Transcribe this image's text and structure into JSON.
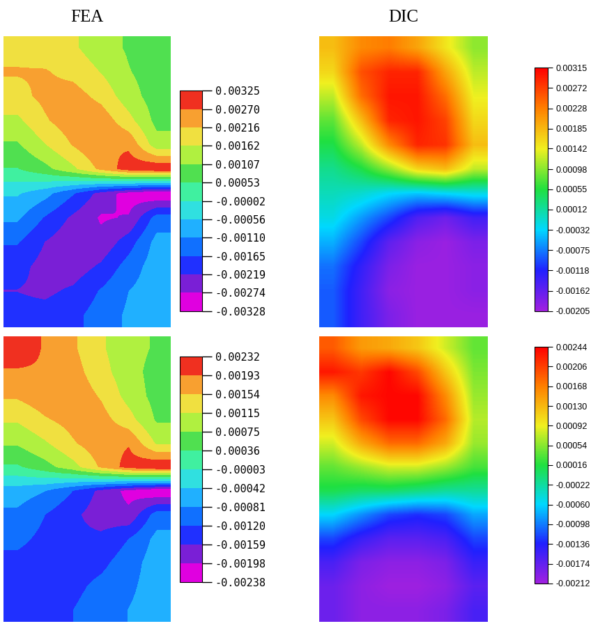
{
  "chart_data": [
    {
      "type": "heatmap",
      "title": "FEA",
      "cells": [
        [
          0.002,
          0.0019,
          0.0017,
          0.0013,
          0.001,
          0.0008
        ],
        [
          0.0022,
          0.0022,
          0.002,
          0.0016,
          0.0011,
          0.0008
        ],
        [
          0.002,
          0.0023,
          0.0024,
          0.002,
          0.0013,
          0.0008
        ],
        [
          0.0015,
          0.0021,
          0.0025,
          0.0025,
          0.0018,
          0.0009
        ],
        [
          0.001,
          0.0016,
          0.0022,
          0.0027,
          0.0026,
          0.0013
        ],
        [
          0.0005,
          0.0009,
          0.0015,
          0.0023,
          0.003,
          0.0032
        ],
        [
          -0.0005,
          -0.0009,
          -0.0016,
          -0.0024,
          -0.003,
          -0.0033
        ],
        [
          -0.001,
          -0.0017,
          -0.0023,
          -0.0028,
          -0.0027,
          -0.0014
        ],
        [
          -0.0016,
          -0.0022,
          -0.0026,
          -0.0026,
          -0.0019,
          -0.0009
        ],
        [
          -0.002,
          -0.0024,
          -0.0025,
          -0.0021,
          -0.0014,
          -0.0008
        ],
        [
          -0.0022,
          -0.0023,
          -0.0021,
          -0.0016,
          -0.0011,
          -0.0008
        ],
        [
          -0.002,
          -0.002,
          -0.0018,
          -0.0014,
          -0.001,
          -0.0008
        ]
      ],
      "colorbar_range": [
        -0.00328,
        0.00325
      ],
      "colorbar_ticks": [
        -0.00328,
        -0.00274,
        -0.00219,
        -0.00165,
        {
          "value": -0.0011,
          "label": "-0.00110"
        },
        -0.00056,
        {
          "value": -2e-05,
          "label": "-0.00002"
        },
        0.00053,
        0.00107,
        0.00162,
        0.00216,
        {
          "value": 0.0027,
          "label": "0.00270"
        },
        0.00325
      ]
    },
    {
      "type": "heatmap",
      "title": "DIC",
      "cells": [
        [
          0.0018,
          0.0022,
          0.0023,
          0.002,
          0.0015,
          0.001
        ],
        [
          0.0016,
          0.0026,
          0.0029,
          0.0029,
          0.002,
          0.0012
        ],
        [
          0.0012,
          0.0024,
          0.003,
          0.003,
          0.0024,
          0.0014
        ],
        [
          0.0008,
          0.0018,
          0.0029,
          0.003,
          0.0027,
          0.0016
        ],
        [
          0.0005,
          0.0012,
          0.0022,
          0.0029,
          0.0028,
          0.0018
        ],
        [
          0.0002,
          0.0005,
          0.001,
          0.0016,
          0.0018,
          0.0012
        ],
        [
          0.0,
          -0.0001,
          -0.0003,
          -0.0004,
          -0.0003,
          -0.0002
        ],
        [
          -0.0002,
          -0.0006,
          -0.001,
          -0.0015,
          -0.0017,
          -0.0014
        ],
        [
          -0.0005,
          -0.001,
          -0.0016,
          -0.0019,
          -0.002,
          -0.0018
        ],
        [
          -0.0008,
          -0.0013,
          -0.0018,
          -0.002,
          -0.002,
          -0.0019
        ],
        [
          -0.0009,
          -0.0014,
          -0.0019,
          -0.002,
          -0.002,
          -0.0019
        ],
        [
          -0.0009,
          -0.0014,
          -0.0018,
          -0.002,
          -0.002,
          -0.002
        ]
      ],
      "colorbar_range": [
        -0.00205,
        0.00315
      ],
      "colorbar_ticks": [
        -0.00205,
        -0.00162,
        -0.00118,
        -0.00075,
        -0.00032,
        0.00012,
        0.00055,
        0.00098,
        0.00142,
        0.00185,
        0.00228,
        0.00272,
        0.00315
      ]
    },
    {
      "type": "heatmap",
      "cells": [
        [
          0.0021,
          0.0019,
          0.0016,
          0.0012,
          0.0009,
          0.0007
        ],
        [
          0.0019,
          0.0019,
          0.0017,
          0.0013,
          0.0009,
          0.0006
        ],
        [
          0.0016,
          0.0018,
          0.0018,
          0.0015,
          0.001,
          0.0006
        ],
        [
          0.0012,
          0.0015,
          0.0017,
          0.0017,
          0.0013,
          0.0007
        ],
        [
          0.0008,
          0.0011,
          0.0015,
          0.0018,
          0.0019,
          0.0011
        ],
        [
          0.0003,
          0.0006,
          0.001,
          0.0016,
          0.0021,
          0.0023
        ],
        [
          -0.0006,
          -0.0008,
          -0.0012,
          -0.0017,
          -0.0021,
          -0.00235
        ],
        [
          -0.0009,
          -0.0012,
          -0.0015,
          -0.0018,
          -0.0019,
          -0.001
        ],
        [
          -0.0011,
          -0.0013,
          -0.0015,
          -0.0015,
          -0.0012,
          -0.0007
        ],
        [
          -0.0013,
          -0.0014,
          -0.0014,
          -0.0013,
          -0.001,
          -0.0006
        ],
        [
          -0.0014,
          -0.0014,
          -0.0013,
          -0.0011,
          -0.0009,
          -0.0006
        ],
        [
          -0.0014,
          -0.0013,
          -0.0012,
          -0.001,
          -0.0008,
          -0.0006
        ]
      ],
      "colorbar_range": [
        -0.00238,
        0.00232
      ],
      "colorbar_ticks": [
        -0.00238,
        -0.00198,
        -0.00159,
        {
          "value": -0.0012,
          "label": "-0.00120"
        },
        -0.00081,
        -0.00042,
        {
          "value": -3e-05,
          "label": "-0.00003"
        },
        0.00036,
        0.00075,
        0.00115,
        0.00154,
        0.00193,
        0.00232
      ]
    },
    {
      "type": "heatmap",
      "cells": [
        [
          0.0019,
          0.0015,
          0.0014,
          0.0012,
          0.0008,
          0.0004
        ],
        [
          0.0023,
          0.0021,
          0.0024,
          0.002,
          0.0012,
          0.0005
        ],
        [
          0.0016,
          0.0023,
          0.0024,
          0.0024,
          0.0016,
          0.0006
        ],
        [
          0.0012,
          0.002,
          0.0024,
          0.0024,
          0.0018,
          0.0007
        ],
        [
          0.0008,
          0.0014,
          0.0018,
          0.0018,
          0.0014,
          0.0006
        ],
        [
          0.0004,
          0.0006,
          0.0008,
          0.0008,
          0.0006,
          0.0003
        ],
        [
          0.0001,
          0.0,
          0.0,
          -0.0001,
          -0.0002,
          -0.0002
        ],
        [
          -0.0006,
          -0.0009,
          -0.0012,
          -0.0013,
          -0.0012,
          -0.0008
        ],
        [
          -0.0012,
          -0.0015,
          -0.0017,
          -0.0017,
          -0.0016,
          -0.0012
        ],
        [
          -0.0016,
          -0.0019,
          -0.002,
          -0.002,
          -0.0019,
          -0.0015
        ],
        [
          -0.0018,
          -0.002,
          -0.0021,
          -0.0021,
          -0.002,
          -0.0017
        ],
        [
          -0.0018,
          -0.002,
          -0.002,
          -0.002,
          -0.0019,
          -0.0016
        ]
      ],
      "colorbar_range": [
        -0.00212,
        0.00244
      ],
      "colorbar_ticks": [
        -0.00212,
        -0.00174,
        -0.00136,
        -0.00098,
        {
          "value": -0.0006,
          "label": "-0.00060"
        },
        -0.00022,
        0.00016,
        0.00054,
        0.00092,
        {
          "value": 0.0013,
          "label": "0.00130"
        },
        0.00168,
        0.00206,
        0.00244
      ]
    }
  ]
}
